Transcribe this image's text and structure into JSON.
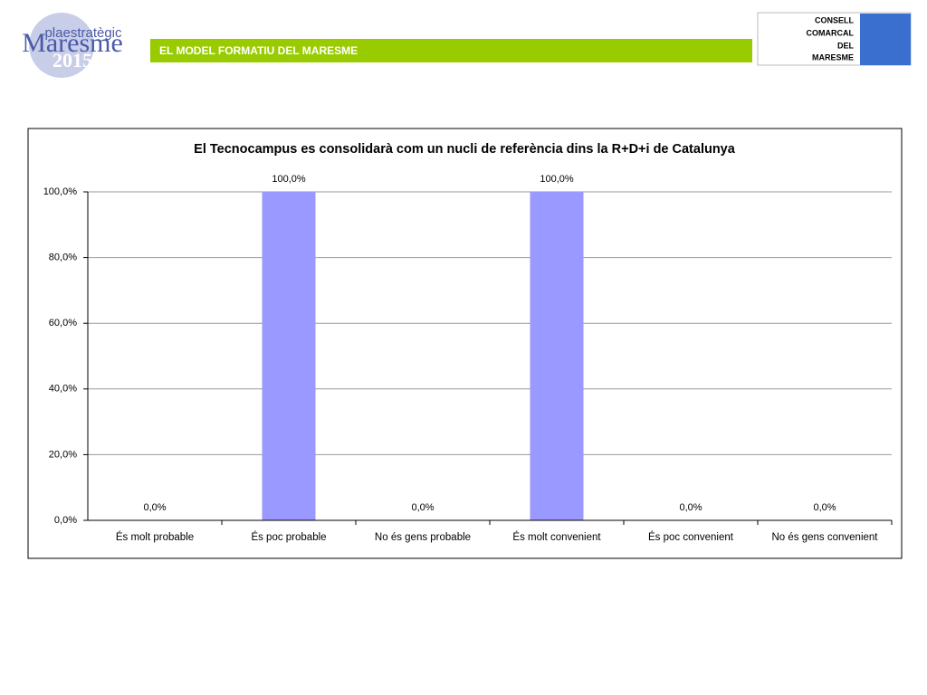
{
  "header": {
    "logo": {
      "line1": "plaestratègic",
      "line2": "Maresme",
      "line3": "2015"
    },
    "band_title": "EL MODEL FORMATIU DEL MARESME",
    "council": [
      "CONSELL",
      "COMARCAL",
      "DEL",
      "MARESME"
    ]
  },
  "chart_data": {
    "type": "bar",
    "title": "El Tecnocampus es consolidarà com un nucli de referència dins la R+D+i de Catalunya",
    "categories": [
      "És molt probable",
      "És poc probable",
      "No és gens probable",
      "És molt convenient",
      "És poc convenient",
      "No és gens convenient"
    ],
    "values": [
      0,
      100,
      0,
      100,
      0,
      0
    ],
    "value_labels": [
      "0,0%",
      "100,0%",
      "0,0%",
      "100,0%",
      "0,0%",
      "0,0%"
    ],
    "color": "#9999ff",
    "ylim": [
      0,
      100
    ],
    "yticks": [
      {
        "value": 0,
        "label": "0,0%"
      },
      {
        "value": 20,
        "label": "20,0%"
      },
      {
        "value": 40,
        "label": "40,0%"
      },
      {
        "value": 60,
        "label": "60,0%"
      },
      {
        "value": 80,
        "label": "80,0%"
      },
      {
        "value": 100,
        "label": "100,0%"
      }
    ],
    "grid": true
  }
}
